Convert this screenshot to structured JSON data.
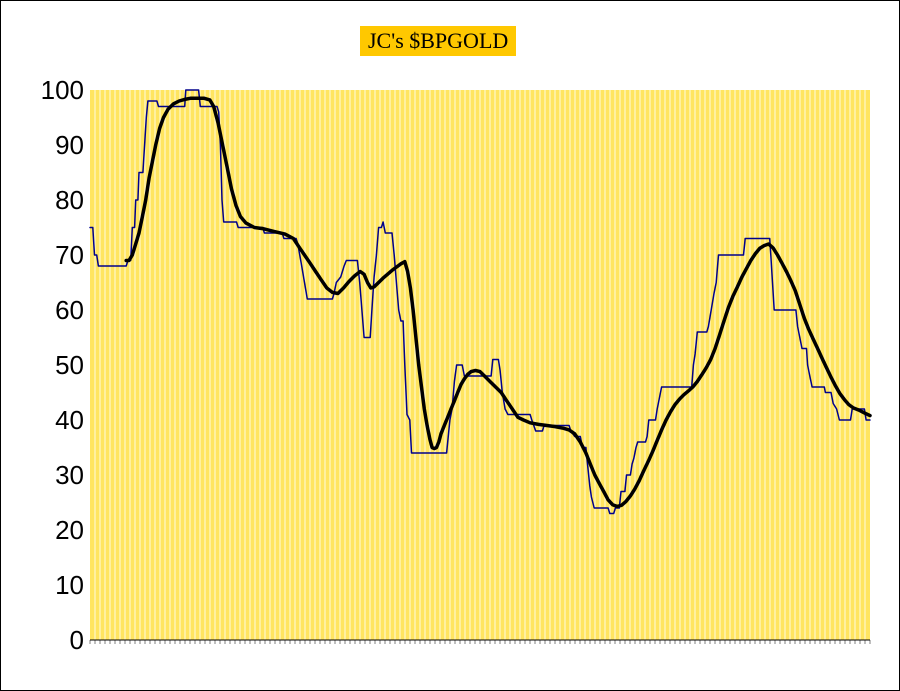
{
  "chart_data": {
    "type": "line",
    "title": "JC's $BPGOLD",
    "xlabel": "",
    "ylabel": "",
    "ylim": [
      0,
      100
    ],
    "yticks": [
      0,
      10,
      20,
      30,
      40,
      50,
      60,
      70,
      80,
      90,
      100
    ],
    "grid": "vertical",
    "legend": "none",
    "colors": {
      "plot_background": "#ffe560",
      "gridline": "#ffffff",
      "title_background": "#ffc800",
      "series_thin": "#00008b",
      "series_thick": "#000000"
    },
    "series": [
      {
        "style": "thin",
        "points": [
          [
            0,
            75
          ],
          [
            0.5,
            75
          ],
          [
            0.8,
            70
          ],
          [
            1.2,
            70
          ],
          [
            1.5,
            68
          ],
          [
            6.5,
            68
          ],
          [
            6.8,
            69
          ],
          [
            7.3,
            69
          ],
          [
            7.6,
            75
          ],
          [
            8,
            75
          ],
          [
            8.2,
            80
          ],
          [
            8.6,
            80
          ],
          [
            8.8,
            85
          ],
          [
            9.5,
            85
          ],
          [
            9.8,
            90
          ],
          [
            10.1,
            95
          ],
          [
            10.4,
            98
          ],
          [
            12,
            98
          ],
          [
            12.3,
            97
          ],
          [
            17,
            97
          ],
          [
            17.2,
            100
          ],
          [
            19.5,
            100
          ],
          [
            19.8,
            97
          ],
          [
            22.8,
            97
          ],
          [
            23.1,
            96
          ],
          [
            23.4,
            90
          ],
          [
            23.7,
            80
          ],
          [
            24,
            76
          ],
          [
            26.3,
            76
          ],
          [
            26.6,
            75
          ],
          [
            31,
            75
          ],
          [
            31.3,
            74
          ],
          [
            34.5,
            74
          ],
          [
            34.8,
            73
          ],
          [
            37,
            73
          ],
          [
            37.3,
            72
          ],
          [
            38,
            68
          ],
          [
            38.5,
            65
          ],
          [
            39,
            62
          ],
          [
            43.5,
            62
          ],
          [
            43.8,
            63
          ],
          [
            44.2,
            65
          ],
          [
            45,
            66
          ],
          [
            45.6,
            68
          ],
          [
            46,
            69
          ],
          [
            48,
            69
          ],
          [
            48.4,
            65
          ],
          [
            48.8,
            60
          ],
          [
            49.2,
            55
          ],
          [
            50.3,
            55
          ],
          [
            50.6,
            60
          ],
          [
            51,
            66
          ],
          [
            51.4,
            70
          ],
          [
            51.8,
            75
          ],
          [
            52.3,
            75
          ],
          [
            52.6,
            76
          ],
          [
            53,
            74
          ],
          [
            54.2,
            74
          ],
          [
            54.6,
            70
          ],
          [
            55,
            65
          ],
          [
            55.4,
            60
          ],
          [
            55.8,
            58
          ],
          [
            56.2,
            58
          ],
          [
            56.5,
            50
          ],
          [
            56.9,
            41
          ],
          [
            57.4,
            40
          ],
          [
            57.7,
            34
          ],
          [
            64,
            34
          ],
          [
            64.2,
            36
          ],
          [
            64.6,
            40
          ],
          [
            65,
            42
          ],
          [
            65.4,
            47
          ],
          [
            65.8,
            50
          ],
          [
            66.8,
            50
          ],
          [
            67.2,
            48
          ],
          [
            72,
            48
          ],
          [
            72.3,
            51
          ],
          [
            73.3,
            51
          ],
          [
            73.6,
            49
          ],
          [
            74,
            45
          ],
          [
            74.5,
            42
          ],
          [
            75,
            41
          ],
          [
            79,
            41
          ],
          [
            79.3,
            40
          ],
          [
            80,
            38
          ],
          [
            81.2,
            38
          ],
          [
            81.5,
            39
          ],
          [
            86,
            39
          ],
          [
            86.3,
            38
          ],
          [
            87,
            37
          ],
          [
            88,
            37
          ],
          [
            88.4,
            35
          ],
          [
            89,
            35
          ],
          [
            89.3,
            32
          ],
          [
            89.7,
            28
          ],
          [
            90,
            26
          ],
          [
            90.5,
            24
          ],
          [
            93,
            24
          ],
          [
            93.3,
            23
          ],
          [
            94,
            23
          ],
          [
            94.3,
            24
          ],
          [
            95,
            24
          ],
          [
            95.3,
            27
          ],
          [
            96,
            27
          ],
          [
            96.3,
            30
          ],
          [
            97,
            30
          ],
          [
            97.3,
            32
          ],
          [
            97.6,
            33
          ],
          [
            98,
            35
          ],
          [
            98.3,
            36
          ],
          [
            99.7,
            36
          ],
          [
            100,
            37
          ],
          [
            100.3,
            40
          ],
          [
            101.5,
            40
          ],
          [
            101.8,
            42
          ],
          [
            102.2,
            44
          ],
          [
            102.6,
            46
          ],
          [
            108,
            46
          ],
          [
            108.3,
            50
          ],
          [
            108.6,
            52
          ],
          [
            109,
            56
          ],
          [
            110.7,
            56
          ],
          [
            111,
            57
          ],
          [
            111.5,
            60
          ],
          [
            112,
            63
          ],
          [
            112.4,
            65
          ],
          [
            112.8,
            70
          ],
          [
            117.3,
            70
          ],
          [
            117.6,
            73
          ],
          [
            122,
            73
          ],
          [
            122.2,
            70
          ],
          [
            122.5,
            65
          ],
          [
            122.8,
            60
          ],
          [
            126.7,
            60
          ],
          [
            127,
            57
          ],
          [
            127.4,
            55
          ],
          [
            127.8,
            53
          ],
          [
            128.6,
            53
          ],
          [
            128.8,
            50
          ],
          [
            129.2,
            48
          ],
          [
            129.6,
            46
          ],
          [
            131.8,
            46
          ],
          [
            132,
            45
          ],
          [
            133,
            45
          ],
          [
            133.4,
            43
          ],
          [
            134,
            42
          ],
          [
            134.5,
            40
          ],
          [
            136.5,
            40
          ],
          [
            136.8,
            42
          ],
          [
            139,
            42
          ],
          [
            139.3,
            40
          ],
          [
            140,
            40
          ]
        ]
      },
      {
        "style": "thick",
        "points": [
          [
            6.5,
            69
          ],
          [
            7,
            69
          ],
          [
            7.6,
            70
          ],
          [
            8.2,
            72
          ],
          [
            8.8,
            74
          ],
          [
            9.4,
            77
          ],
          [
            10,
            80
          ],
          [
            10.6,
            84
          ],
          [
            11.2,
            87
          ],
          [
            11.8,
            90
          ],
          [
            12.5,
            93
          ],
          [
            13.2,
            95
          ],
          [
            14,
            96.5
          ],
          [
            15,
            97.5
          ],
          [
            16,
            98
          ],
          [
            17,
            98.3
          ],
          [
            18,
            98.5
          ],
          [
            19.5,
            98.5
          ],
          [
            20.5,
            98.5
          ],
          [
            21.5,
            98.2
          ],
          [
            22.2,
            97
          ],
          [
            23,
            94
          ],
          [
            23.8,
            90
          ],
          [
            24.6,
            86
          ],
          [
            25.4,
            82
          ],
          [
            26.2,
            79
          ],
          [
            27,
            77
          ],
          [
            28,
            75.8
          ],
          [
            29.5,
            75
          ],
          [
            31,
            74.8
          ],
          [
            33,
            74.3
          ],
          [
            35,
            73.8
          ],
          [
            36.5,
            73
          ],
          [
            37.5,
            71.5
          ],
          [
            38.5,
            70
          ],
          [
            39.5,
            68.5
          ],
          [
            40.5,
            67
          ],
          [
            41.5,
            65.5
          ],
          [
            42.5,
            64
          ],
          [
            43.5,
            63.2
          ],
          [
            44.5,
            63
          ],
          [
            45.5,
            64
          ],
          [
            46.5,
            65.2
          ],
          [
            47.5,
            66.2
          ],
          [
            48.5,
            67
          ],
          [
            49.2,
            66.5
          ],
          [
            49.8,
            65
          ],
          [
            50.4,
            64
          ],
          [
            51,
            64.2
          ],
          [
            51.8,
            65
          ],
          [
            52.6,
            65.8
          ],
          [
            53.4,
            66.5
          ],
          [
            54.2,
            67.2
          ],
          [
            55,
            67.8
          ],
          [
            55.8,
            68.4
          ],
          [
            56.5,
            68.8
          ],
          [
            57,
            67
          ],
          [
            57.5,
            64
          ],
          [
            58,
            60
          ],
          [
            58.5,
            55
          ],
          [
            59,
            50
          ],
          [
            59.5,
            46
          ],
          [
            60,
            42
          ],
          [
            60.5,
            39
          ],
          [
            61,
            36.5
          ],
          [
            61.4,
            35
          ],
          [
            61.8,
            34.8
          ],
          [
            62.2,
            35
          ],
          [
            62.6,
            36
          ],
          [
            63,
            37.5
          ],
          [
            63.6,
            39
          ],
          [
            64.2,
            40.5
          ],
          [
            64.8,
            42
          ],
          [
            65.4,
            43.5
          ],
          [
            66,
            45
          ],
          [
            66.6,
            46.5
          ],
          [
            67.2,
            47.5
          ],
          [
            67.8,
            48.3
          ],
          [
            68.4,
            48.8
          ],
          [
            69.2,
            49
          ],
          [
            70,
            48.8
          ],
          [
            70.8,
            48
          ],
          [
            71.8,
            47
          ],
          [
            72.8,
            46
          ],
          [
            73.8,
            45
          ],
          [
            74.8,
            43.5
          ],
          [
            75.8,
            42
          ],
          [
            76.8,
            40.5
          ],
          [
            77.8,
            40
          ],
          [
            79,
            39.5
          ],
          [
            80.5,
            39.2
          ],
          [
            82,
            39
          ],
          [
            83.5,
            38.8
          ],
          [
            85,
            38.5
          ],
          [
            86,
            38.2
          ],
          [
            87,
            37.5
          ],
          [
            88,
            36
          ],
          [
            89,
            34
          ],
          [
            89.8,
            32
          ],
          [
            90.6,
            30
          ],
          [
            91.4,
            28.5
          ],
          [
            92.2,
            27
          ],
          [
            93,
            25.5
          ],
          [
            93.8,
            24.6
          ],
          [
            94.6,
            24.3
          ],
          [
            95.4,
            24.5
          ],
          [
            96.2,
            25.2
          ],
          [
            97,
            26.2
          ],
          [
            97.8,
            27.5
          ],
          [
            98.6,
            29
          ],
          [
            99.4,
            30.8
          ],
          [
            100.2,
            32.5
          ],
          [
            101,
            34.3
          ],
          [
            101.8,
            36.3
          ],
          [
            102.6,
            38.2
          ],
          [
            103.4,
            40
          ],
          [
            104.2,
            41.5
          ],
          [
            105,
            42.8
          ],
          [
            105.8,
            43.8
          ],
          [
            106.6,
            44.6
          ],
          [
            107.4,
            45.3
          ],
          [
            108.2,
            46
          ],
          [
            109,
            47
          ],
          [
            109.8,
            48.2
          ],
          [
            110.6,
            49.5
          ],
          [
            111.4,
            51
          ],
          [
            112.2,
            53
          ],
          [
            113,
            55.5
          ],
          [
            113.8,
            58
          ],
          [
            114.6,
            60.5
          ],
          [
            115.4,
            62.5
          ],
          [
            116.2,
            64.2
          ],
          [
            117,
            66
          ],
          [
            117.8,
            67.5
          ],
          [
            118.6,
            69
          ],
          [
            119.4,
            70.2
          ],
          [
            120.2,
            71.2
          ],
          [
            121,
            71.7
          ],
          [
            121.8,
            72
          ],
          [
            122.6,
            71.3
          ],
          [
            123.4,
            70
          ],
          [
            124.2,
            68.5
          ],
          [
            125,
            67
          ],
          [
            125.8,
            65.3
          ],
          [
            126.6,
            63.5
          ],
          [
            127.4,
            61
          ],
          [
            128.2,
            58.5
          ],
          [
            129,
            56.5
          ],
          [
            129.8,
            54.7
          ],
          [
            130.6,
            53
          ],
          [
            131.4,
            51.2
          ],
          [
            132.2,
            49.5
          ],
          [
            133,
            47.8
          ],
          [
            133.8,
            46.2
          ],
          [
            134.6,
            44.8
          ],
          [
            135.4,
            43.7
          ],
          [
            136.2,
            42.8
          ],
          [
            137,
            42.2
          ],
          [
            138,
            41.8
          ],
          [
            139,
            41.3
          ],
          [
            140,
            40.8
          ]
        ]
      }
    ]
  }
}
